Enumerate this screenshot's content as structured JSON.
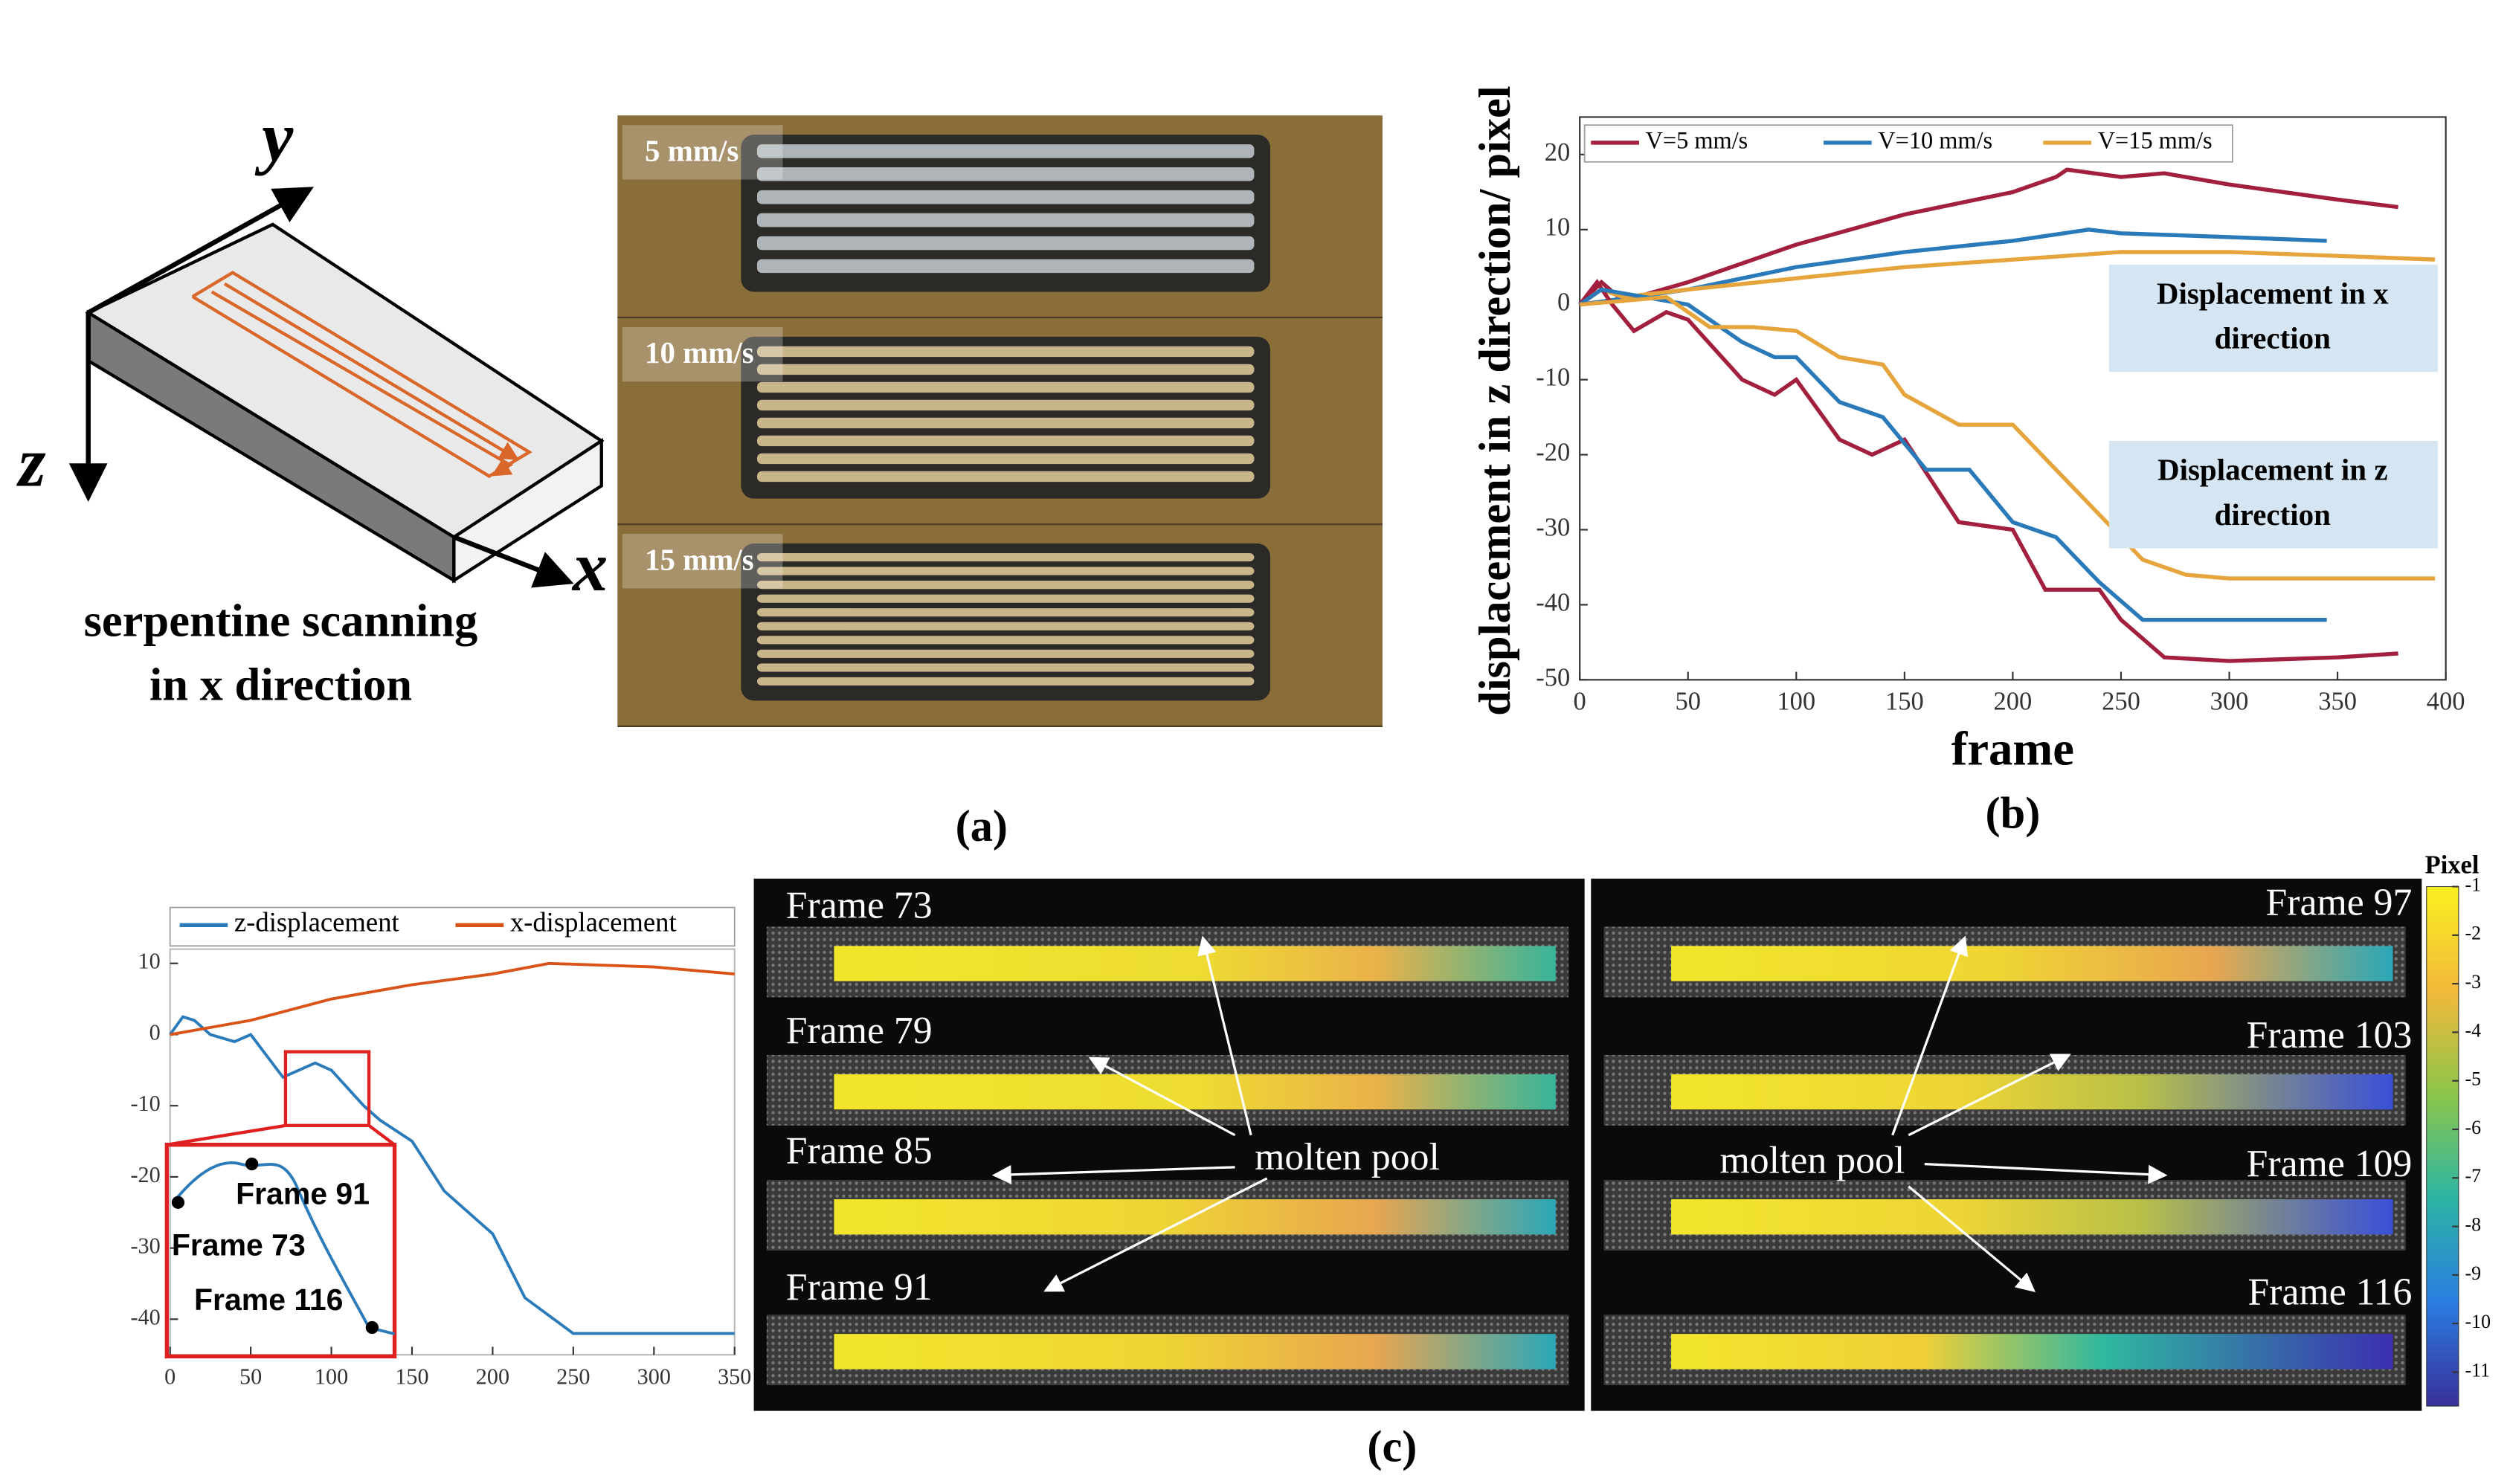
{
  "schematic": {
    "axes": [
      "y",
      "z",
      "x"
    ],
    "caption": [
      "serpentine scanning",
      "in x direction"
    ]
  },
  "photo": {
    "labels": [
      "5 mm/s",
      "10 mm/s",
      "15 mm/s"
    ]
  },
  "panel_labels": [
    "(a)",
    "(b)",
    "(c)"
  ],
  "chart_data": [
    {
      "type": "line",
      "xlabel": "frame",
      "ylabel": "displacement in z direction/ pixel",
      "xlim": [
        0,
        400
      ],
      "ylim": [
        -50,
        25
      ],
      "xticks": [
        0,
        50,
        100,
        150,
        200,
        250,
        300,
        350,
        400
      ],
      "yticks": [
        -50,
        -40,
        -30,
        -20,
        -10,
        0,
        10,
        20
      ],
      "legend": "upper left",
      "annotations": [
        [
          "Displacement in x",
          "direction"
        ],
        [
          "Displacement in z",
          "direction"
        ]
      ],
      "series": [
        {
          "name": "V=5 mm/s",
          "color": "#a2203d",
          "x": [
            0,
            10,
            20,
            50,
            100,
            150,
            200,
            220,
            225,
            250,
            270,
            300,
            350,
            378
          ],
          "values": [
            0,
            3,
            0.5,
            3,
            8,
            12,
            15,
            17,
            18,
            17,
            17.5,
            16,
            14,
            13
          ]
        },
        {
          "name": "V=10 mm/s",
          "color": "#2a7ab9",
          "x": [
            0,
            50,
            100,
            150,
            200,
            235,
            250,
            300,
            345
          ],
          "values": [
            0,
            2,
            5,
            7,
            8.5,
            10,
            9.5,
            9,
            8.5
          ]
        },
        {
          "name": "V=15 mm/s",
          "color": "#e6a43c",
          "x": [
            0,
            10,
            20,
            50,
            100,
            150,
            200,
            250,
            300,
            350,
            395
          ],
          "values": [
            0,
            2,
            1,
            2,
            3.5,
            5,
            6,
            7,
            7,
            6.5,
            6
          ]
        },
        {
          "color": "#a2203d",
          "x": [
            0,
            8,
            15,
            25,
            40,
            50,
            75,
            90,
            100,
            120,
            135,
            150,
            175,
            200,
            215,
            240,
            250,
            270,
            300,
            350,
            378
          ],
          "values": [
            0,
            3,
            0,
            -3.5,
            -1,
            -2,
            -10,
            -12,
            -10,
            -18,
            -20,
            -18,
            -29,
            -30,
            -38,
            -38,
            -42,
            -47,
            -47.5,
            -47,
            -46.5
          ]
        },
        {
          "color": "#2a7ab9",
          "x": [
            0,
            10,
            30,
            50,
            75,
            90,
            100,
            120,
            140,
            160,
            180,
            200,
            220,
            240,
            260,
            300,
            345
          ],
          "values": [
            0,
            2,
            1,
            0,
            -5,
            -7,
            -7,
            -13,
            -15,
            -22,
            -22,
            -29,
            -31,
            -37,
            -42,
            -42,
            -42
          ]
        },
        {
          "color": "#e6a43c",
          "x": [
            0,
            40,
            60,
            80,
            100,
            120,
            140,
            150,
            175,
            200,
            220,
            240,
            260,
            280,
            300,
            395
          ],
          "values": [
            0,
            1,
            -3,
            -3,
            -3.5,
            -7,
            -8,
            -12,
            -16,
            -16,
            -22,
            -28,
            -34,
            -36,
            -36.5,
            -36.5
          ]
        }
      ]
    },
    {
      "type": "line",
      "xlim": [
        0,
        350
      ],
      "ylim": [
        -45,
        12
      ],
      "xticks": [
        0,
        50,
        100,
        150,
        200,
        250,
        300,
        350
      ],
      "yticks": [
        -40,
        -30,
        -20,
        -10,
        0,
        10
      ],
      "legend": "top",
      "annotations": [
        "Frame 91",
        "Frame 73",
        "Frame 116"
      ],
      "series": [
        {
          "name": "z-displacement",
          "color": "#2b7bba",
          "x": [
            0,
            8,
            15,
            25,
            40,
            50,
            70,
            90,
            100,
            120,
            130,
            150,
            170,
            190,
            200,
            220,
            250,
            300,
            350
          ],
          "values": [
            0,
            2.5,
            2,
            0,
            -1,
            0,
            -6,
            -4,
            -5,
            -10,
            -12,
            -15,
            -22,
            -26,
            -28,
            -37,
            -42,
            -42,
            -42
          ]
        },
        {
          "name": "x-displacement",
          "color": "#d95319",
          "x": [
            0,
            50,
            100,
            150,
            200,
            235,
            300,
            350
          ],
          "values": [
            0,
            2,
            5,
            7,
            8.5,
            10,
            9.5,
            8.5
          ]
        }
      ]
    }
  ],
  "heatmap": {
    "frames_left": [
      "Frame 73",
      "Frame 79",
      "Frame 85",
      "Frame 91"
    ],
    "frames_right": [
      "Frame 97",
      "Frame 103",
      "Frame 109",
      "Frame 116"
    ],
    "callouts": [
      "molten pool",
      "molten pool"
    ]
  },
  "colorbar": {
    "label": "Pixel",
    "lim": [
      -11.7,
      -1
    ],
    "ticks": [
      -1,
      -2,
      -3,
      -4,
      -5,
      -6,
      -7,
      -8,
      -9,
      -10,
      -11
    ]
  }
}
